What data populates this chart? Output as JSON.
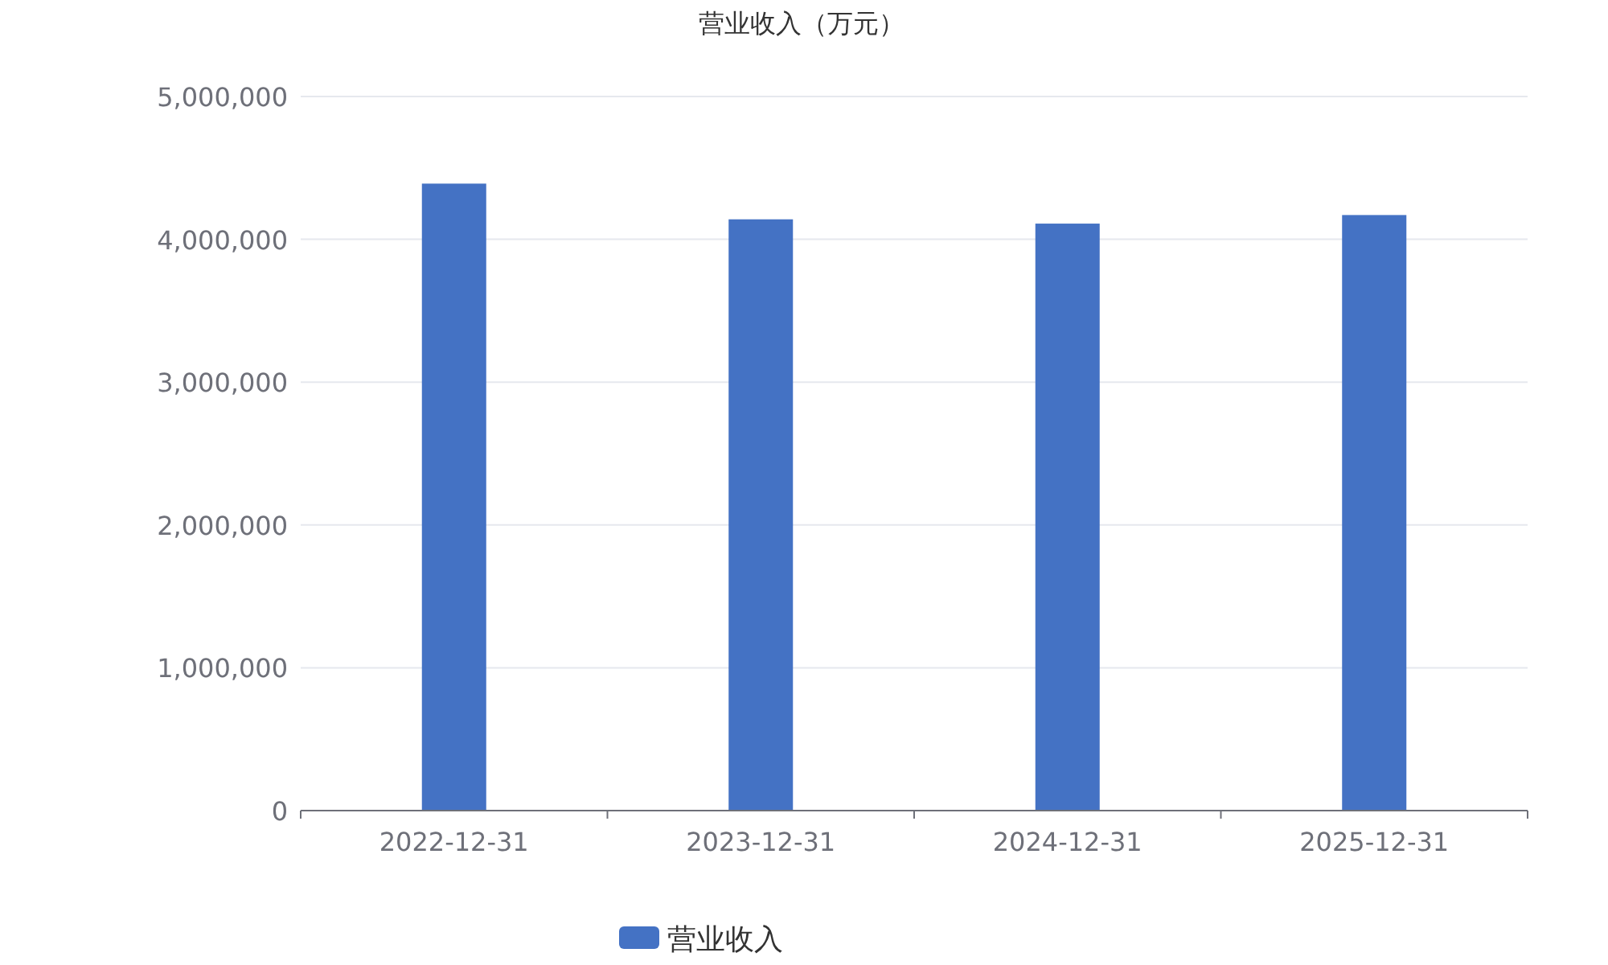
{
  "chart_data": {
    "type": "bar",
    "title": "营业收入（万元）",
    "categories": [
      "2022-12-31",
      "2023-12-31",
      "2024-12-31",
      "2025-12-31"
    ],
    "series": [
      {
        "name": "营业收入",
        "color": "#4472c4",
        "values": [
          4390000,
          4140000,
          4110000,
          4170000
        ]
      }
    ],
    "ylim": [
      0,
      5000000
    ],
    "yticks": [
      0,
      {
        "value": 1000000,
        "label": "1,000,000"
      },
      {
        "value": 2000000,
        "label": "2,000,000"
      },
      {
        "value": 3000000,
        "label": "3,000,000"
      },
      {
        "value": 4000000,
        "label": "4,000,000"
      },
      {
        "value": 5000000,
        "label": "5,000,000"
      }
    ],
    "grid": "y",
    "legend": "bottom"
  }
}
